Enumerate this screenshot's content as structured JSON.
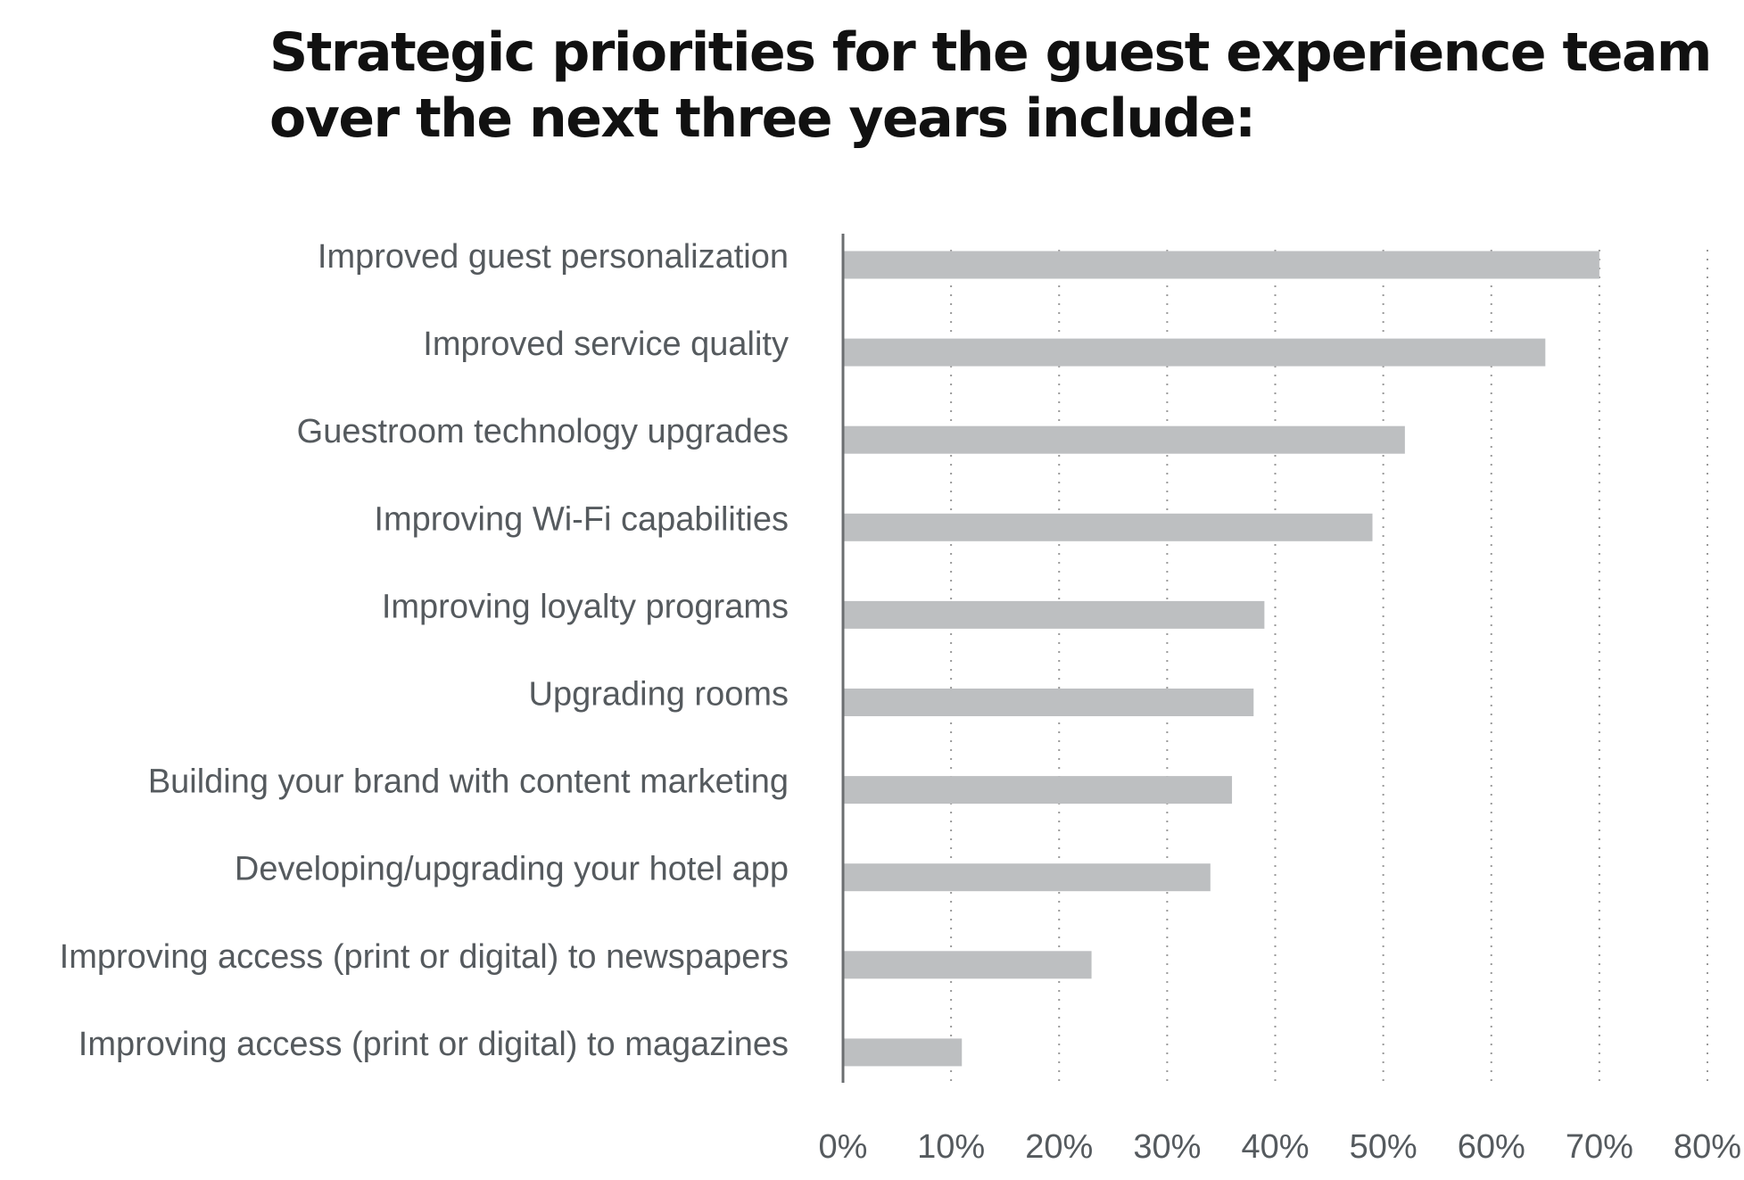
{
  "chart_data": {
    "type": "bar",
    "orientation": "horizontal",
    "title": "Strategic priorities for the guest experience team over the next three years include:",
    "categories": [
      "Improved guest personalization",
      "Improved service quality",
      "Guestroom technology upgrades",
      "Improving Wi-Fi capabilities",
      "Improving loyalty programs",
      "Upgrading rooms",
      "Building your brand with content marketing",
      "Developing/upgrading your hotel app",
      "Improving access (print or digital) to newspapers",
      "Improving access (print or digital) to magazines"
    ],
    "values": [
      70,
      65,
      52,
      49,
      39,
      38,
      36,
      34,
      23,
      11
    ],
    "xlim": [
      0,
      80
    ],
    "xticks": [
      "0%",
      "10%",
      "20%",
      "30%",
      "40%",
      "50%",
      "60%",
      "70%",
      "80%"
    ],
    "xlabel": "",
    "ylabel": "",
    "grid": "vertical dotted",
    "bar_color": "#bdbfc1",
    "text_color": "#555a5e"
  }
}
